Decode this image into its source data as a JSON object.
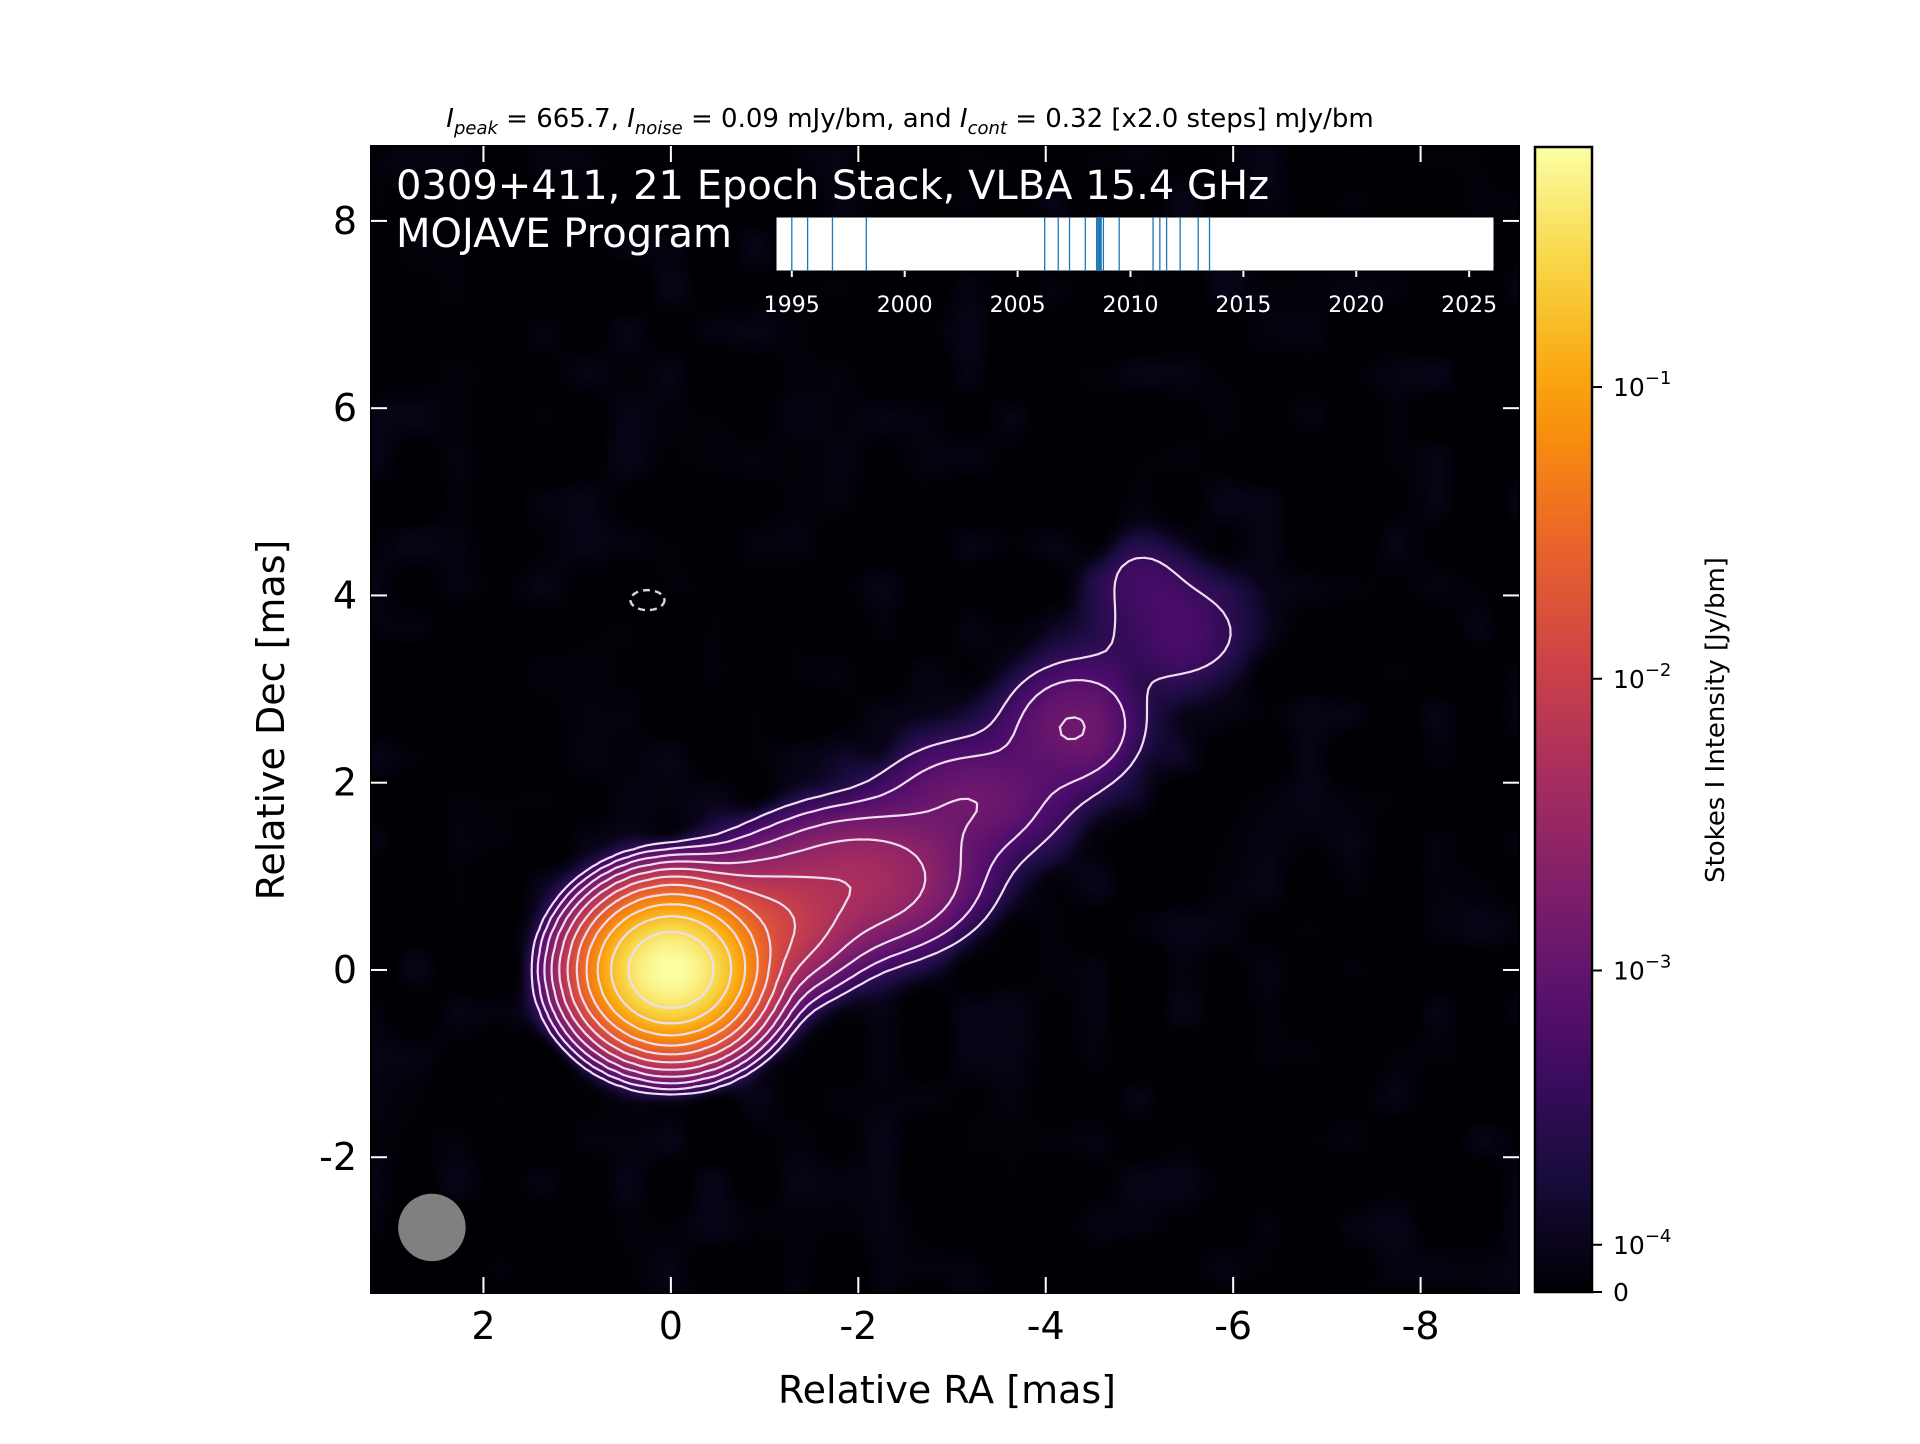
{
  "chart_data": {
    "type": "heatmap",
    "title_line1": "0309+411, 21 Epoch Stack, VLBA 15.4 GHz",
    "title_line2": "MOJAVE Program",
    "header": {
      "peak_sym": "I",
      "peak_sub": "peak",
      "peak_text": " = 665.7, ",
      "noise_sym": "I",
      "noise_sub": "noise",
      "noise_text": " = 0.09 mJy/bm, and ",
      "cont_sym": "I",
      "cont_sub": "cont",
      "cont_text": " = 0.32 [x2.0 steps] mJy/bm"
    },
    "xlabel": "Relative RA [mas]",
    "ylabel": "Relative Dec [mas]",
    "xlim": [
      3.2,
      -9.05
    ],
    "ylim": [
      -3.45,
      8.8
    ],
    "xticks": [
      2,
      0,
      -2,
      -4,
      -6,
      -8
    ],
    "yticks": [
      -2,
      0,
      2,
      4,
      6,
      8
    ],
    "colorbar": {
      "label": "Stokes I Intensity [Jy/bm]",
      "scale": "symlog",
      "range": [
        0,
        0.665
      ],
      "ticks": [
        {
          "value": 0.1,
          "base": "10",
          "exp": "−1"
        },
        {
          "value": 0.01,
          "base": "10",
          "exp": "−2"
        },
        {
          "value": 0.001,
          "base": "10",
          "exp": "−3"
        },
        {
          "value": 0.0001,
          "base": "10",
          "exp": "−4"
        },
        {
          "value": 0,
          "base": "0",
          "exp": ""
        }
      ],
      "colormap": "inferno"
    },
    "components": [
      {
        "x": 0.0,
        "y": 0.0,
        "peak": 0.6657,
        "sx": 0.38,
        "sy": 0.34
      },
      {
        "x": -0.9,
        "y": 0.45,
        "peak": 0.012,
        "sx": 0.5,
        "sy": 0.35
      },
      {
        "x": -2.0,
        "y": 0.95,
        "peak": 0.0045,
        "sx": 0.65,
        "sy": 0.4
      },
      {
        "x": -3.2,
        "y": 1.8,
        "peak": 0.0012,
        "sx": 0.6,
        "sy": 0.4
      },
      {
        "x": -4.3,
        "y": 2.6,
        "peak": 0.0013,
        "sx": 0.45,
        "sy": 0.4
      },
      {
        "x": -5.4,
        "y": 3.6,
        "peak": 0.00055,
        "sx": 0.55,
        "sy": 0.4
      },
      {
        "x": -5.0,
        "y": 4.25,
        "peak": 0.0003,
        "sx": 0.35,
        "sy": 0.3
      }
    ],
    "contour_levels_mJy": [
      0.32,
      0.64,
      1.28,
      2.56,
      5.12,
      10.24,
      20.48,
      40.96,
      81.92,
      163.84,
      327.68
    ],
    "negative_contour": {
      "x": 0.25,
      "y": 3.95
    },
    "beam": {
      "x": 2.55,
      "y": -2.75,
      "major": 0.72,
      "minor": 0.72
    },
    "epoch_timeline": {
      "range": [
        1994.3,
        2026.1
      ],
      "ticks": [
        1995,
        2000,
        2005,
        2010,
        2015,
        2020,
        2025
      ],
      "epochs": [
        1995.0,
        1995.7,
        1996.8,
        1998.3,
        2006.2,
        2006.8,
        2007.3,
        2008.0,
        2008.5,
        2008.6,
        2008.7,
        2008.8,
        2009.5,
        2011.0,
        2011.6,
        2012.2,
        2013.0,
        2013.5,
        2008.55,
        2008.65,
        2011.3
      ]
    }
  }
}
